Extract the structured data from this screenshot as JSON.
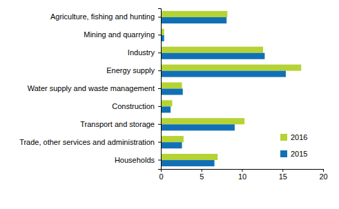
{
  "chart_data": {
    "type": "bar",
    "orientation": "horizontal",
    "categories": [
      "Agriculture, fishing and hunting",
      "Mining and quarrying",
      "Industry",
      "Energy supply",
      "Water supply and waste management",
      "Construction",
      "Transport and storage",
      "Trade, other services and administration",
      "Households"
    ],
    "series": [
      {
        "name": "2016",
        "color": "#b5d334",
        "values": [
          8.2,
          0.4,
          12.6,
          17.3,
          2.6,
          1.4,
          10.3,
          2.8,
          7.0
        ]
      },
      {
        "name": "2015",
        "color": "#1170b5",
        "values": [
          8.1,
          0.4,
          12.8,
          15.4,
          2.7,
          1.2,
          9.1,
          2.6,
          6.6
        ]
      }
    ],
    "xlim": [
      0,
      20
    ],
    "xticks": [
      0,
      5,
      10,
      15,
      20
    ],
    "grid": false,
    "legend": "lower right"
  }
}
